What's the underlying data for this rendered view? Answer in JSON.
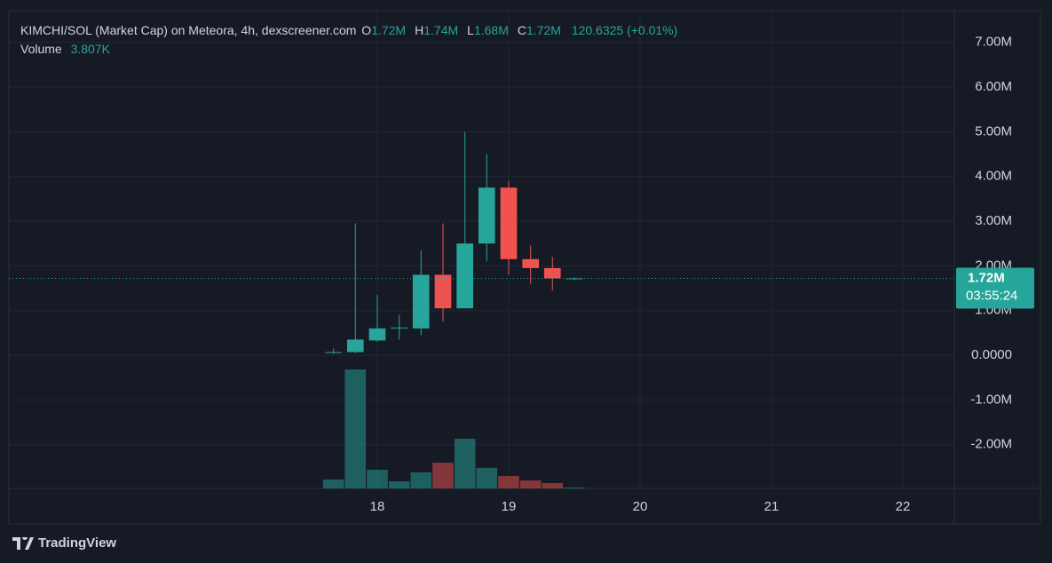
{
  "chart_data": {
    "type": "candlestick",
    "title": "KIMCHI/SOL (Market Cap) on Meteora, 4h, dexscreener.com",
    "legend_values": [
      {
        "label": "O",
        "value": "1.72M"
      },
      {
        "label": "H",
        "value": "1.74M"
      },
      {
        "label": "L",
        "value": "1.68M"
      },
      {
        "label": "C",
        "value": "1.72M"
      }
    ],
    "change": "120.6325 (+0.01%)",
    "volume_label": "Volume",
    "volume_value": "3.807K",
    "x": [
      17.667,
      17.833,
      18.0,
      18.167,
      18.333,
      18.5,
      18.667,
      18.833,
      19.0,
      19.167,
      19.333,
      19.5
    ],
    "open": [
      50000,
      70000,
      330000,
      600000,
      600000,
      1800000,
      1050000,
      2500000,
      3750000,
      2150000,
      1950000,
      1720000
    ],
    "high": [
      150000,
      2950000,
      1350000,
      900000,
      2350000,
      2950000,
      5000000,
      4500000,
      3900000,
      2450000,
      2200000,
      1740000
    ],
    "low": [
      30000,
      50000,
      300000,
      350000,
      450000,
      750000,
      1050000,
      2100000,
      1800000,
      1600000,
      1450000,
      1680000
    ],
    "close": [
      70000,
      350000,
      600000,
      620000,
      1800000,
      1050000,
      2500000,
      3750000,
      2150000,
      1950000,
      1720000,
      1720000
    ],
    "volume": [
      38,
      510,
      80,
      30,
      69,
      110,
      213,
      88,
      53,
      34,
      23,
      3.807
    ],
    "up_color": "#26a69a",
    "down_color": "#ef5350",
    "last_price": {
      "value": 1720000,
      "label": "1.72M"
    },
    "countdown": "03:55:24",
    "ylim": [
      -2980000,
      7710000
    ],
    "yticks": [
      {
        "value": -2000000,
        "label": "-2.00M"
      },
      {
        "value": -1000000,
        "label": "-1.00M"
      },
      {
        "value": 0,
        "label": "0.0000"
      },
      {
        "value": 1000000,
        "label": "1.00M"
      },
      {
        "value": 2000000,
        "label": "2.00M"
      },
      {
        "value": 3000000,
        "label": "3.00M"
      },
      {
        "value": 4000000,
        "label": "4.00M"
      },
      {
        "value": 5000000,
        "label": "5.00M"
      },
      {
        "value": 6000000,
        "label": "6.00M"
      },
      {
        "value": 7000000,
        "label": "7.00M"
      }
    ],
    "xlim": [
      15.196,
      22.392
    ],
    "xticks": [
      18,
      19,
      20,
      21,
      22
    ],
    "grid": true
  },
  "footer": {
    "brand": "TradingView"
  }
}
